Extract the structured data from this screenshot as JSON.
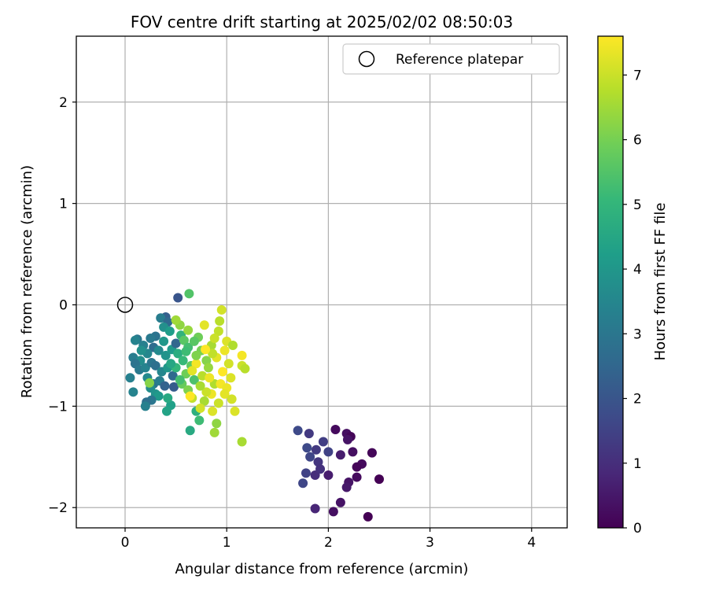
{
  "chart_data": {
    "type": "scatter",
    "title": "FOV centre drift starting at 2025/02/02 08:50:03",
    "xlabel": "Angular distance from reference (arcmin)",
    "ylabel": "Rotation from reference (arcmin)",
    "xlim": [
      -0.48,
      4.35
    ],
    "ylim": [
      -2.2,
      2.65
    ],
    "xticks": [
      0,
      1,
      2,
      3,
      4
    ],
    "xtick_labels": [
      "0",
      "1",
      "2",
      "3",
      "4"
    ],
    "yticks": [
      2,
      1,
      0,
      -1,
      -2
    ],
    "ytick_labels": [
      "2",
      "1",
      "0",
      "−1",
      "−2"
    ],
    "grid": true,
    "legend": {
      "position": "top-right",
      "entries": [
        "Reference platepar"
      ]
    },
    "reference_point": {
      "x": 0.0,
      "y": 0.0,
      "marker": "open-circle",
      "label": "Reference platepar"
    },
    "colorbar": {
      "label": "Hours from first FF file",
      "colormap": "viridis",
      "range": [
        0,
        7.6
      ],
      "ticks": [
        0,
        1,
        2,
        3,
        4,
        5,
        6,
        7
      ],
      "tick_labels": [
        "0",
        "1",
        "2",
        "3",
        "4",
        "5",
        "6",
        "7"
      ]
    },
    "colors": {
      "viridis": [
        "#440154",
        "#482878",
        "#3e4a89",
        "#31688e",
        "#26828e",
        "#1f9e89",
        "#35b779",
        "#6ece58",
        "#b5de2b",
        "#fde725"
      ]
    },
    "series": [
      {
        "points": [
          {
            "x": 2.07,
            "y": -1.23,
            "t": 0.2
          },
          {
            "x": 2.18,
            "y": -1.27,
            "t": 0.3
          },
          {
            "x": 2.22,
            "y": -1.3,
            "t": 0.1
          },
          {
            "x": 2.19,
            "y": -1.33,
            "t": 0.4
          },
          {
            "x": 2.43,
            "y": -1.46,
            "t": 0.1
          },
          {
            "x": 2.24,
            "y": -1.45,
            "t": 0.3
          },
          {
            "x": 2.12,
            "y": -1.48,
            "t": 0.6
          },
          {
            "x": 2.33,
            "y": -1.57,
            "t": 0.2
          },
          {
            "x": 2.28,
            "y": -1.6,
            "t": 0.1
          },
          {
            "x": 2.5,
            "y": -1.72,
            "t": 0.0
          },
          {
            "x": 2.28,
            "y": -1.7,
            "t": 0.2
          },
          {
            "x": 2.2,
            "y": -1.75,
            "t": 0.4
          },
          {
            "x": 2.18,
            "y": -1.8,
            "t": 0.5
          },
          {
            "x": 2.0,
            "y": -1.68,
            "t": 0.6
          },
          {
            "x": 2.12,
            "y": -1.95,
            "t": 0.4
          },
          {
            "x": 2.05,
            "y": -2.04,
            "t": 0.3
          },
          {
            "x": 2.39,
            "y": -2.09,
            "t": 0.0
          },
          {
            "x": 1.87,
            "y": -2.01,
            "t": 0.8
          },
          {
            "x": 1.95,
            "y": -1.35,
            "t": 1.4
          },
          {
            "x": 1.88,
            "y": -1.43,
            "t": 1.3
          },
          {
            "x": 1.82,
            "y": -1.5,
            "t": 1.6
          },
          {
            "x": 1.9,
            "y": -1.55,
            "t": 1.2
          },
          {
            "x": 1.87,
            "y": -1.68,
            "t": 1.0
          },
          {
            "x": 1.78,
            "y": -1.66,
            "t": 1.5
          },
          {
            "x": 1.75,
            "y": -1.76,
            "t": 1.6
          },
          {
            "x": 1.7,
            "y": -1.24,
            "t": 1.7
          },
          {
            "x": 1.81,
            "y": -1.27,
            "t": 1.3
          },
          {
            "x": 2.0,
            "y": -1.45,
            "t": 1.5
          },
          {
            "x": 1.79,
            "y": -1.41,
            "t": 1.7
          },
          {
            "x": 1.92,
            "y": -1.62,
            "t": 1.1
          },
          {
            "x": 0.52,
            "y": 0.07,
            "t": 2.0
          },
          {
            "x": 0.63,
            "y": 0.11,
            "t": 5.5
          },
          {
            "x": 0.4,
            "y": -0.12,
            "t": 2.3
          },
          {
            "x": 0.35,
            "y": -0.13,
            "t": 3.2
          },
          {
            "x": 0.42,
            "y": -0.17,
            "t": 2.6
          },
          {
            "x": 0.38,
            "y": -0.22,
            "t": 3.8
          },
          {
            "x": 0.44,
            "y": -0.26,
            "t": 4.2
          },
          {
            "x": 0.3,
            "y": -0.31,
            "t": 2.9
          },
          {
            "x": 0.25,
            "y": -0.33,
            "t": 3.1
          },
          {
            "x": 0.12,
            "y": -0.34,
            "t": 3.0
          },
          {
            "x": 0.1,
            "y": -0.35,
            "t": 3.4
          },
          {
            "x": 0.18,
            "y": -0.4,
            "t": 3.3
          },
          {
            "x": 0.28,
            "y": -0.42,
            "t": 2.7
          },
          {
            "x": 0.33,
            "y": -0.45,
            "t": 3.6
          },
          {
            "x": 0.22,
            "y": -0.48,
            "t": 3.5
          },
          {
            "x": 0.4,
            "y": -0.5,
            "t": 3.9
          },
          {
            "x": 0.46,
            "y": -0.44,
            "t": 4.1
          },
          {
            "x": 0.5,
            "y": -0.38,
            "t": 2.5
          },
          {
            "x": 0.08,
            "y": -0.52,
            "t": 3.2
          },
          {
            "x": 0.15,
            "y": -0.55,
            "t": 3.7
          },
          {
            "x": 0.1,
            "y": -0.58,
            "t": 2.9
          },
          {
            "x": 0.14,
            "y": -0.64,
            "t": 3.1
          },
          {
            "x": 0.2,
            "y": -0.62,
            "t": 3.4
          },
          {
            "x": 0.26,
            "y": -0.57,
            "t": 3.0
          },
          {
            "x": 0.3,
            "y": -0.6,
            "t": 2.8
          },
          {
            "x": 0.36,
            "y": -0.66,
            "t": 3.5
          },
          {
            "x": 0.42,
            "y": -0.62,
            "t": 4.0
          },
          {
            "x": 0.47,
            "y": -0.7,
            "t": 2.6
          },
          {
            "x": 0.05,
            "y": -0.72,
            "t": 3.3
          },
          {
            "x": 0.22,
            "y": -0.72,
            "t": 3.6
          },
          {
            "x": 0.28,
            "y": -0.78,
            "t": 2.9
          },
          {
            "x": 0.34,
            "y": -0.75,
            "t": 3.2
          },
          {
            "x": 0.39,
            "y": -0.8,
            "t": 2.4
          },
          {
            "x": 0.48,
            "y": -0.81,
            "t": 2.2
          },
          {
            "x": 0.25,
            "y": -0.82,
            "t": 3.7
          },
          {
            "x": 0.08,
            "y": -0.86,
            "t": 3.4
          },
          {
            "x": 0.3,
            "y": -0.88,
            "t": 3.9
          },
          {
            "x": 0.33,
            "y": -0.9,
            "t": 4.1
          },
          {
            "x": 0.26,
            "y": -0.94,
            "t": 3.0
          },
          {
            "x": 0.21,
            "y": -0.96,
            "t": 2.8
          },
          {
            "x": 0.2,
            "y": -1.0,
            "t": 3.3
          },
          {
            "x": 0.45,
            "y": -0.99,
            "t": 4.3
          },
          {
            "x": 0.41,
            "y": -1.05,
            "t": 4.4
          },
          {
            "x": 0.64,
            "y": -1.24,
            "t": 4.6
          },
          {
            "x": 0.73,
            "y": -1.14,
            "t": 5.2
          },
          {
            "x": 0.7,
            "y": -1.05,
            "t": 4.8
          },
          {
            "x": 0.55,
            "y": -0.3,
            "t": 4.9
          },
          {
            "x": 0.58,
            "y": -0.35,
            "t": 5.6
          },
          {
            "x": 0.62,
            "y": -0.42,
            "t": 5.3
          },
          {
            "x": 0.52,
            "y": -0.48,
            "t": 4.7
          },
          {
            "x": 0.57,
            "y": -0.55,
            "t": 5.1
          },
          {
            "x": 0.65,
            "y": -0.6,
            "t": 5.7
          },
          {
            "x": 0.5,
            "y": -0.62,
            "t": 5.0
          },
          {
            "x": 0.45,
            "y": -0.58,
            "t": 4.5
          },
          {
            "x": 0.6,
            "y": -0.68,
            "t": 5.9
          },
          {
            "x": 0.68,
            "y": -0.74,
            "t": 5.4
          },
          {
            "x": 0.56,
            "y": -0.78,
            "t": 5.8
          },
          {
            "x": 0.62,
            "y": -0.84,
            "t": 6.1
          },
          {
            "x": 0.72,
            "y": -0.32,
            "t": 5.9
          },
          {
            "x": 0.75,
            "y": -0.45,
            "t": 6.0
          },
          {
            "x": 0.8,
            "y": -0.55,
            "t": 6.2
          },
          {
            "x": 0.54,
            "y": -0.2,
            "t": 6.3
          },
          {
            "x": 0.5,
            "y": -0.15,
            "t": 6.5
          },
          {
            "x": 0.62,
            "y": -0.25,
            "t": 6.4
          },
          {
            "x": 0.68,
            "y": -0.36,
            "t": 5.6
          },
          {
            "x": 0.85,
            "y": -0.4,
            "t": 6.6
          },
          {
            "x": 0.82,
            "y": -0.62,
            "t": 6.4
          },
          {
            "x": 0.76,
            "y": -0.7,
            "t": 6.8
          },
          {
            "x": 0.88,
            "y": -0.78,
            "t": 6.7
          },
          {
            "x": 0.66,
            "y": -0.92,
            "t": 6.9
          },
          {
            "x": 0.78,
            "y": -0.95,
            "t": 6.6
          },
          {
            "x": 0.92,
            "y": -0.97,
            "t": 7.0
          },
          {
            "x": 0.74,
            "y": -1.02,
            "t": 7.1
          },
          {
            "x": 0.86,
            "y": -1.05,
            "t": 7.2
          },
          {
            "x": 0.88,
            "y": -1.26,
            "t": 6.5
          },
          {
            "x": 0.9,
            "y": -1.17,
            "t": 6.3
          },
          {
            "x": 1.15,
            "y": -1.35,
            "t": 6.6
          },
          {
            "x": 0.95,
            "y": -0.05,
            "t": 7.1
          },
          {
            "x": 0.93,
            "y": -0.16,
            "t": 6.8
          },
          {
            "x": 0.78,
            "y": -0.2,
            "t": 7.3
          },
          {
            "x": 0.92,
            "y": -0.26,
            "t": 6.9
          },
          {
            "x": 0.88,
            "y": -0.33,
            "t": 7.0
          },
          {
            "x": 1.0,
            "y": -0.36,
            "t": 7.2
          },
          {
            "x": 1.06,
            "y": -0.4,
            "t": 6.7
          },
          {
            "x": 0.98,
            "y": -0.45,
            "t": 7.4
          },
          {
            "x": 1.15,
            "y": -0.5,
            "t": 7.5
          },
          {
            "x": 0.9,
            "y": -0.52,
            "t": 7.3
          },
          {
            "x": 1.02,
            "y": -0.58,
            "t": 7.1
          },
          {
            "x": 1.15,
            "y": -0.6,
            "t": 7.0
          },
          {
            "x": 1.18,
            "y": -0.63,
            "t": 6.8
          },
          {
            "x": 0.96,
            "y": -0.66,
            "t": 7.6
          },
          {
            "x": 1.04,
            "y": -0.72,
            "t": 7.2
          },
          {
            "x": 0.94,
            "y": -0.78,
            "t": 7.5
          },
          {
            "x": 1.0,
            "y": -0.82,
            "t": 7.4
          },
          {
            "x": 0.98,
            "y": -0.88,
            "t": 7.3
          },
          {
            "x": 1.05,
            "y": -0.93,
            "t": 7.1
          },
          {
            "x": 1.08,
            "y": -1.05,
            "t": 7.2
          },
          {
            "x": 0.85,
            "y": -0.88,
            "t": 7.4
          },
          {
            "x": 0.8,
            "y": -0.86,
            "t": 7.0
          },
          {
            "x": 0.74,
            "y": -0.8,
            "t": 6.6
          },
          {
            "x": 0.7,
            "y": -0.58,
            "t": 7.5
          },
          {
            "x": 0.66,
            "y": -0.65,
            "t": 7.3
          },
          {
            "x": 0.64,
            "y": -0.9,
            "t": 7.6
          },
          {
            "x": 0.7,
            "y": -0.5,
            "t": 6.1
          },
          {
            "x": 0.6,
            "y": -0.46,
            "t": 5.2
          },
          {
            "x": 0.38,
            "y": -0.36,
            "t": 4.0
          },
          {
            "x": 0.16,
            "y": -0.45,
            "t": 3.8
          },
          {
            "x": 0.24,
            "y": -0.77,
            "t": 6.2
          },
          {
            "x": 0.42,
            "y": -0.92,
            "t": 4.6
          },
          {
            "x": 0.54,
            "y": -0.74,
            "t": 5.3
          },
          {
            "x": 0.86,
            "y": -0.48,
            "t": 6.9
          },
          {
            "x": 0.83,
            "y": -0.72,
            "t": 7.4
          },
          {
            "x": 0.79,
            "y": -0.44,
            "t": 7.6
          }
        ]
      }
    ]
  }
}
